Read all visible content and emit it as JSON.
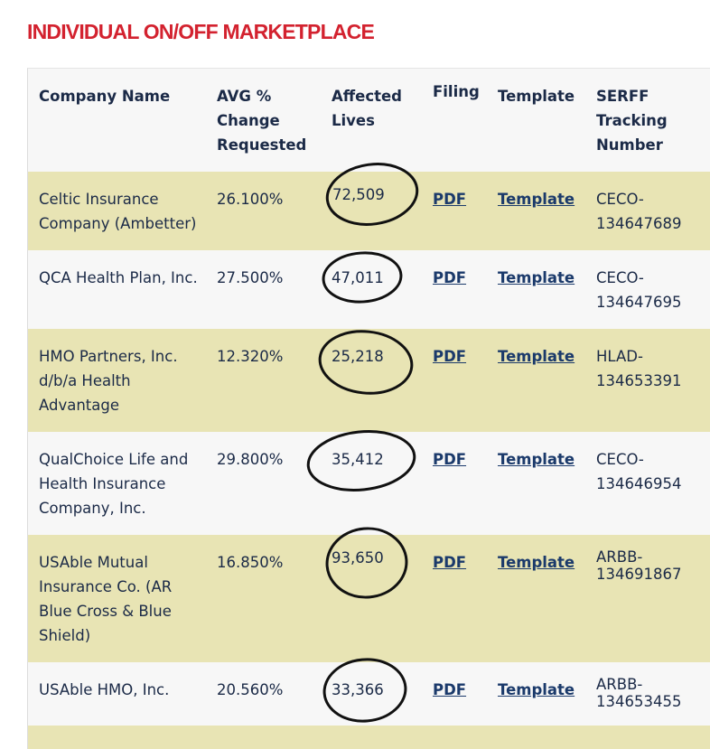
{
  "title": "INDIVIDUAL ON/OFF MARKETPLACE",
  "table": {
    "headers": [
      "Company Name",
      "AVG % Change Requested",
      "Affected Lives",
      "Filing",
      "Template",
      "SERFF Tracking Number"
    ],
    "rows": [
      {
        "company": "Celtic Insurance Company (Ambetter)",
        "avg_change": "26.100%",
        "affected_lives": "72,509",
        "filing": "PDF",
        "template": "Template",
        "serff": "CECO-134647689"
      },
      {
        "company": "QCA Health Plan, Inc.",
        "avg_change": "27.500%",
        "affected_lives": "47,011",
        "filing": "PDF",
        "template": "Template",
        "serff": "CECO-134647695"
      },
      {
        "company": "HMO Partners, Inc. d/b/a Health Advantage",
        "avg_change": "12.320%",
        "affected_lives": "25,218",
        "filing": "PDF",
        "template": "Template",
        "serff": "HLAD-134653391"
      },
      {
        "company": "QualChoice Life and Health Insurance Company, Inc.",
        "avg_change": "29.800%",
        "affected_lives": "35,412",
        "filing": "PDF",
        "template": "Template",
        "serff": "CECO-134646954"
      },
      {
        "company": "USAble Mutual Insurance Co. (AR Blue Cross & Blue Shield)",
        "avg_change": "16.850%",
        "affected_lives": "93,650",
        "filing": "PDF",
        "template": "Template",
        "serff": "ARBB-134691867"
      },
      {
        "company": "USAble HMO, Inc.",
        "avg_change": "20.560%",
        "affected_lives": "33,366",
        "filing": "PDF",
        "template": "Template",
        "serff": "ARBB-134653455"
      }
    ]
  },
  "colors": {
    "title": "#d3222f",
    "row_highlight": "#e8e4b4",
    "row_plain": "#f7f7f7",
    "text": "#1b2a47",
    "link": "#1b3a6b",
    "annotation": "#111111"
  },
  "annotations": "hand-drawn-circles-around-affected-lives"
}
